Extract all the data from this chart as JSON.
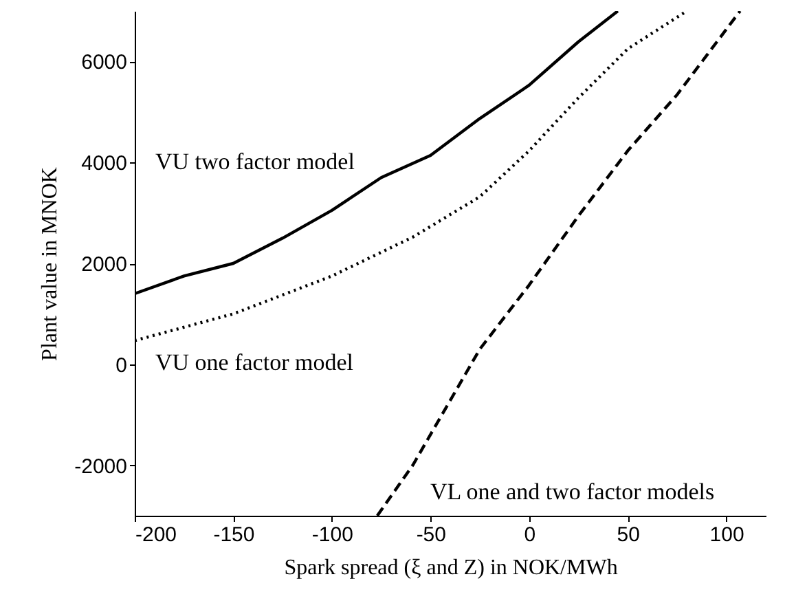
{
  "chart_data": {
    "type": "line",
    "xlabel": "Spark spread (ξ and Z) in NOK/MWh",
    "ylabel": "Plant value in MNOK",
    "xlim": [
      -200,
      120
    ],
    "ylim": [
      -3000,
      7000
    ],
    "xticks": [
      -200,
      -150,
      -100,
      -50,
      0,
      50,
      100
    ],
    "yticks": [
      -2000,
      0,
      2000,
      4000,
      6000
    ],
    "grid": false,
    "marker": "none",
    "series": [
      {
        "color": "#000000",
        "line_style": "solid",
        "x": [
          -200,
          -175,
          -150,
          -125,
          -100,
          -75,
          -50,
          -25,
          0,
          25,
          45
        ],
        "values": [
          1400,
          1750,
          2000,
          2500,
          3050,
          3700,
          4140,
          4870,
          5530,
          6390,
          7000
        ]
      },
      {
        "color": "#000000",
        "line_style": "dotted",
        "x": [
          -200,
          -150,
          -100,
          -59,
          -25,
          0,
          25,
          50,
          80
        ],
        "values": [
          470,
          1000,
          1750,
          2520,
          3320,
          4230,
          5280,
          6250,
          7000
        ]
      },
      {
        "color": "#000000",
        "line_style": "dashed",
        "x": [
          -77,
          -59,
          -25,
          0,
          25,
          50,
          75,
          107
        ],
        "values": [
          -3000,
          -2000,
          300,
          1570,
          2940,
          4230,
          5340,
          7000
        ]
      }
    ],
    "annotations": [
      "VU two factor model",
      "VU one factor model",
      "VL one and two factor models"
    ]
  }
}
